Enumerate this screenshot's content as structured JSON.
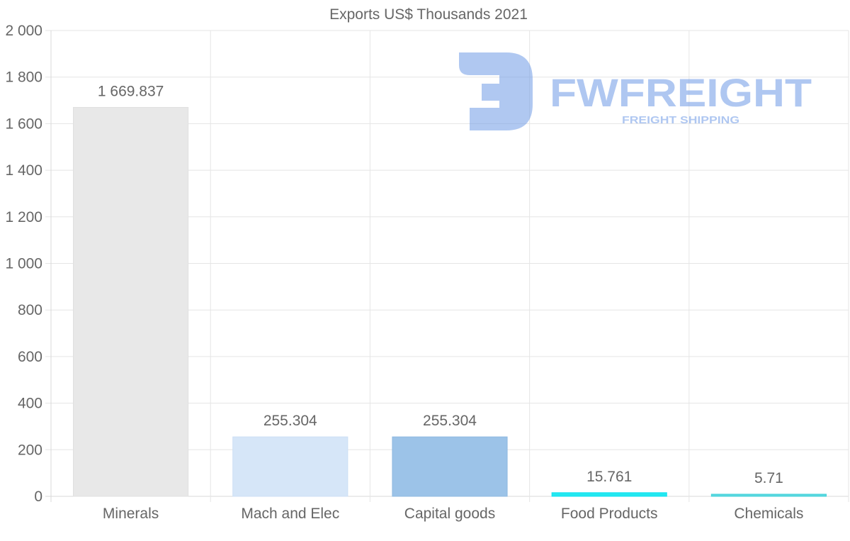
{
  "chart_data": {
    "type": "bar",
    "title": "Exports US$ Thousands 2021",
    "categories": [
      "Minerals",
      "Mach and Elec",
      "Capital goods",
      "Food Products",
      "Chemicals"
    ],
    "values": [
      1669.837,
      255.304,
      255.304,
      15.761,
      5.71
    ],
    "value_labels": [
      "1 669.837",
      "255.304",
      "255.304",
      "15.761",
      "5.71"
    ],
    "bar_colors": [
      "#e8e8e8",
      "#d6e6f8",
      "#9cc3e8",
      "#22e8f0",
      "#5ad8e0"
    ],
    "bar_border_colors": [
      "#e0e0e0",
      "#cddff5",
      "#90b9e0",
      "#10e0f0",
      "#40d0d8"
    ],
    "ylim": [
      0,
      2000
    ],
    "yticks": [
      0,
      200,
      400,
      600,
      800,
      1000,
      1200,
      1400,
      1600,
      1800,
      2000
    ],
    "ytick_labels": [
      "0",
      "200",
      "400",
      "600",
      "800",
      "1 000",
      "1 200",
      "1 400",
      "1 600",
      "1 800",
      "2 000"
    ],
    "xlabel": "",
    "ylabel": "",
    "grid": true
  },
  "watermark": {
    "brand": "FWFREIGHT",
    "tagline": "FREIGHT SHIPPING",
    "color": "#6f9ae6"
  }
}
